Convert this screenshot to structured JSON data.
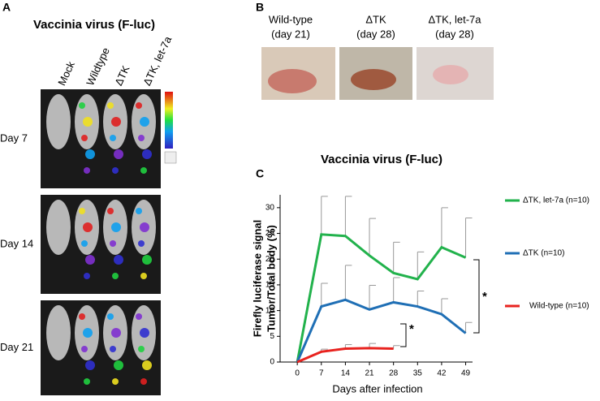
{
  "panel_a": {
    "label": "A",
    "title": "Vaccinia virus (F-luc)",
    "columns": [
      "Mock",
      "Wildtype",
      "ΔTK",
      "ΔTK, let-7a"
    ],
    "rows": [
      "Day 7",
      "Day 14",
      "Day 21"
    ]
  },
  "panel_b": {
    "label": "B",
    "captions": [
      [
        "Wild-type",
        "(day 21)"
      ],
      [
        "ΔTK",
        "(day 28)"
      ],
      [
        "ΔTK, let-7a",
        "(day 28)"
      ]
    ]
  },
  "panel_c_label": "C",
  "chart_data": {
    "type": "line",
    "title": "Vaccinia virus (F-luc)",
    "y_label": [
      "Firefly luciferase signal",
      "Tumor/Total body (%)"
    ],
    "x_label": "Days after infection",
    "x": [
      0,
      7,
      14,
      21,
      28,
      35,
      42,
      49
    ],
    "series": [
      {
        "name": "ΔTK, let-7a (n=10)",
        "color": "#22b24c",
        "values": [
          0,
          24.8,
          24.5,
          20.7,
          17.3,
          16.1,
          22.3,
          20.3
        ],
        "errors": [
          null,
          7.4,
          7.7,
          7.2,
          6.0,
          5.3,
          7.7,
          7.7
        ]
      },
      {
        "name": "ΔTK (n=10)",
        "color": "#1f6fb5",
        "values": [
          0,
          10.8,
          12.1,
          10.2,
          11.6,
          10.8,
          9.3,
          5.6
        ],
        "errors": [
          null,
          4.5,
          6.7,
          4.7,
          4.8,
          3.0,
          3.0,
          2.1
        ]
      },
      {
        "name": "Wild-type (n=10)",
        "color": "#e8231f",
        "values": [
          0,
          2.0,
          2.6,
          2.7,
          2.6,
          null,
          null,
          null
        ],
        "errors": [
          null,
          0.5,
          0.8,
          0.9,
          0.6,
          null,
          null,
          null
        ]
      }
    ],
    "xlim": [
      -5,
      51
    ],
    "ylim": [
      0,
      32.5
    ],
    "xticks": [
      0,
      7,
      14,
      21,
      28,
      35,
      42,
      49
    ],
    "yticks": [
      0,
      5,
      10,
      15,
      20,
      25,
      30
    ],
    "annotations": [
      "*",
      "*"
    ]
  }
}
